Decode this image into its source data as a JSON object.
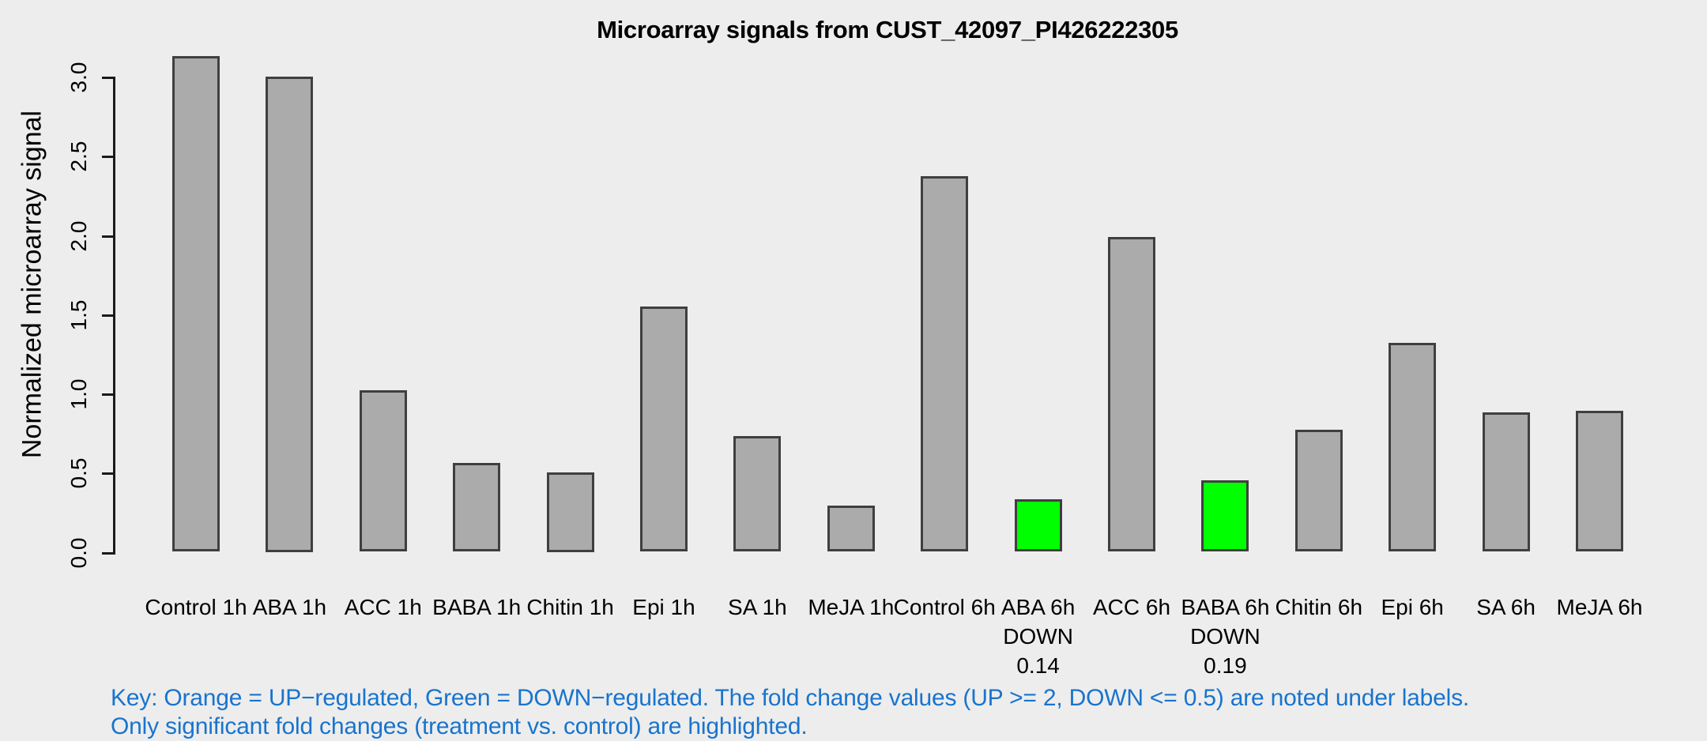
{
  "title": "Microarray signals from CUST_42097_PI426222305",
  "y_axis": {
    "label": "Normalized microarray signal",
    "tick_labels": [
      "0.0",
      "0.5",
      "1.0",
      "1.5",
      "2.0",
      "2.5",
      "3.0"
    ]
  },
  "chart_data": {
    "type": "bar",
    "title": "Microarray signals from CUST_42097_PI426222305",
    "xlabel": "",
    "ylabel": "Normalized microarray signal",
    "ylim": [
      0,
      3.0
    ],
    "yticks": [
      0.0,
      0.5,
      1.0,
      1.5,
      2.0,
      2.5,
      3.0
    ],
    "grid": false,
    "legend_position": "none",
    "categories": [
      "Control 1h",
      "ABA 1h",
      "ACC 1h",
      "BABA 1h",
      "Chitin 1h",
      "Epi 1h",
      "SA 1h",
      "MeJA 1h",
      "Control 6h",
      "ABA 6h",
      "ACC 6h",
      "BABA 6h",
      "Chitin 6h",
      "Epi 6h",
      "SA 6h",
      "MeJA 6h"
    ],
    "values": [
      3.13,
      3.0,
      1.02,
      0.56,
      0.5,
      1.55,
      0.73,
      0.29,
      2.37,
      0.33,
      1.99,
      0.45,
      0.77,
      1.32,
      0.88,
      0.89
    ],
    "bar_states": [
      "normal",
      "normal",
      "normal",
      "normal",
      "normal",
      "normal",
      "normal",
      "normal",
      "normal",
      "down",
      "normal",
      "down",
      "normal",
      "normal",
      "normal",
      "normal"
    ],
    "sublabels": [
      null,
      null,
      null,
      null,
      null,
      null,
      null,
      null,
      null,
      [
        "DOWN",
        "0.14"
      ],
      null,
      [
        "DOWN",
        "0.19"
      ],
      null,
      null,
      null,
      null
    ],
    "highlights": [
      {
        "category": "ABA 6h",
        "state": "DOWN",
        "fold_change": "0.14"
      },
      {
        "category": "BABA 6h",
        "state": "DOWN",
        "fold_change": "0.19"
      }
    ]
  },
  "key": {
    "line1": "Key: Orange = UP−regulated, Green = DOWN−regulated. The fold change values (UP >= 2, DOWN <= 0.5) are noted under labels.",
    "line2": "Only significant fold changes (treatment vs. control) are highlighted."
  },
  "colors": {
    "background": "#EDEDED",
    "bar_fill": "#ABABAB",
    "bar_border": "#3F3F3F",
    "down_fill": "#00FF00",
    "axis": "#1A1A1A",
    "text": "#000000",
    "key_text": "#1874CD"
  }
}
